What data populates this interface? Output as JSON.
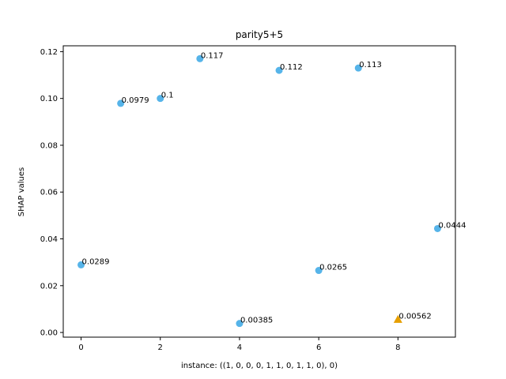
{
  "chart_data": {
    "type": "scatter",
    "title": "parity5+5",
    "xlabel": "instance: ((1, 0, 0, 0, 1, 1, 0, 1, 1, 0), 0)",
    "ylabel": "SHAP values",
    "xlim": [
      -0.45,
      9.45
    ],
    "ylim": [
      -0.002,
      0.1225
    ],
    "xticks": [
      0,
      2,
      4,
      6,
      8
    ],
    "xtick_labels": [
      "0",
      "2",
      "4",
      "6",
      "8"
    ],
    "yticks": [
      0.0,
      0.02,
      0.04,
      0.06,
      0.08,
      0.1,
      0.12
    ],
    "ytick_labels": [
      "0.00",
      "0.02",
      "0.04",
      "0.06",
      "0.08",
      "0.10",
      "0.12"
    ],
    "grid": false,
    "points": [
      {
        "x": 0,
        "y": 0.0289,
        "label": "0.0289",
        "marker": "circle",
        "color": "#56b4e9"
      },
      {
        "x": 1,
        "y": 0.0979,
        "label": "0.0979",
        "marker": "circle",
        "color": "#56b4e9"
      },
      {
        "x": 2,
        "y": 0.1,
        "label": "0.1",
        "marker": "circle",
        "color": "#56b4e9"
      },
      {
        "x": 3,
        "y": 0.117,
        "label": "0.117",
        "marker": "circle",
        "color": "#56b4e9"
      },
      {
        "x": 4,
        "y": 0.00385,
        "label": "0.00385",
        "marker": "circle",
        "color": "#56b4e9"
      },
      {
        "x": 5,
        "y": 0.112,
        "label": "0.112",
        "marker": "circle",
        "color": "#56b4e9"
      },
      {
        "x": 6,
        "y": 0.0265,
        "label": "0.0265",
        "marker": "circle",
        "color": "#56b4e9"
      },
      {
        "x": 7,
        "y": 0.113,
        "label": "0.113",
        "marker": "circle",
        "color": "#56b4e9"
      },
      {
        "x": 8,
        "y": 0.00562,
        "label": "0.00562",
        "marker": "triangle",
        "color": "#e69f00"
      },
      {
        "x": 9,
        "y": 0.0444,
        "label": "0.0444",
        "marker": "circle",
        "color": "#56b4e9"
      }
    ]
  }
}
